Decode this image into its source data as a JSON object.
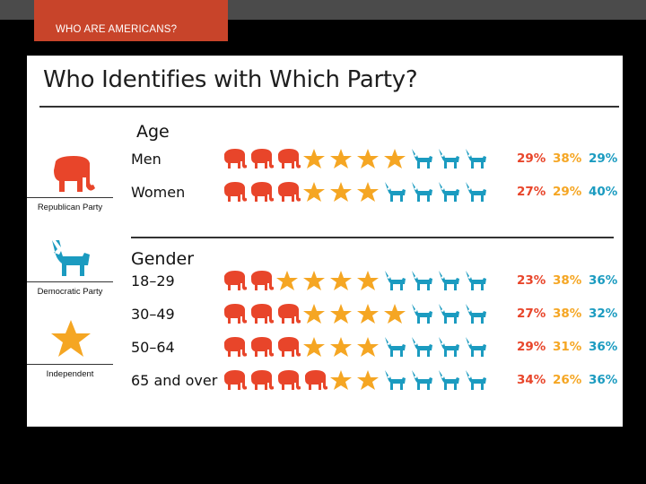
{
  "header": {
    "tab_label": "WHO ARE AMERICANS?"
  },
  "panel": {
    "title": "Who Identifies with Which Party?",
    "section_1": "Age",
    "section_2": "Gender"
  },
  "legend": [
    {
      "label": "Republican Party",
      "icon": "elephant-icon",
      "color": "#e8452a"
    },
    {
      "label": "Democratic Party",
      "icon": "donkey-icon",
      "color": "#1b9bc0"
    },
    {
      "label": "Independent",
      "icon": "star-icon",
      "color": "#f5a623"
    }
  ],
  "chart_data": {
    "type": "table",
    "series": [
      {
        "name": "Republican Party",
        "color": "#e8452a"
      },
      {
        "name": "Independent",
        "color": "#f5a623"
      },
      {
        "name": "Democratic Party",
        "color": "#1b9bc0"
      }
    ],
    "groups": [
      {
        "rows": [
          {
            "label": "Men",
            "values": [
              29,
              38,
              29
            ],
            "text": [
              "29%",
              "38%",
              "29%"
            ]
          },
          {
            "label": "Women",
            "values": [
              27,
              29,
              40
            ],
            "text": [
              "27%",
              "29%",
              "40%"
            ]
          }
        ]
      },
      {
        "rows": [
          {
            "label": "18–29",
            "values": [
              23,
              38,
              36
            ],
            "text": [
              "23%",
              "38%",
              "36%"
            ]
          },
          {
            "label": "30–49",
            "values": [
              27,
              38,
              32
            ],
            "text": [
              "27%",
              "38%",
              "32%"
            ]
          },
          {
            "label": "50–64",
            "values": [
              29,
              31,
              36
            ],
            "text": [
              "29%",
              "31%",
              "36%"
            ]
          },
          {
            "label": "65 and over",
            "values": [
              34,
              26,
              36
            ],
            "text": [
              "34%",
              "26%",
              "36%"
            ]
          }
        ]
      }
    ]
  }
}
